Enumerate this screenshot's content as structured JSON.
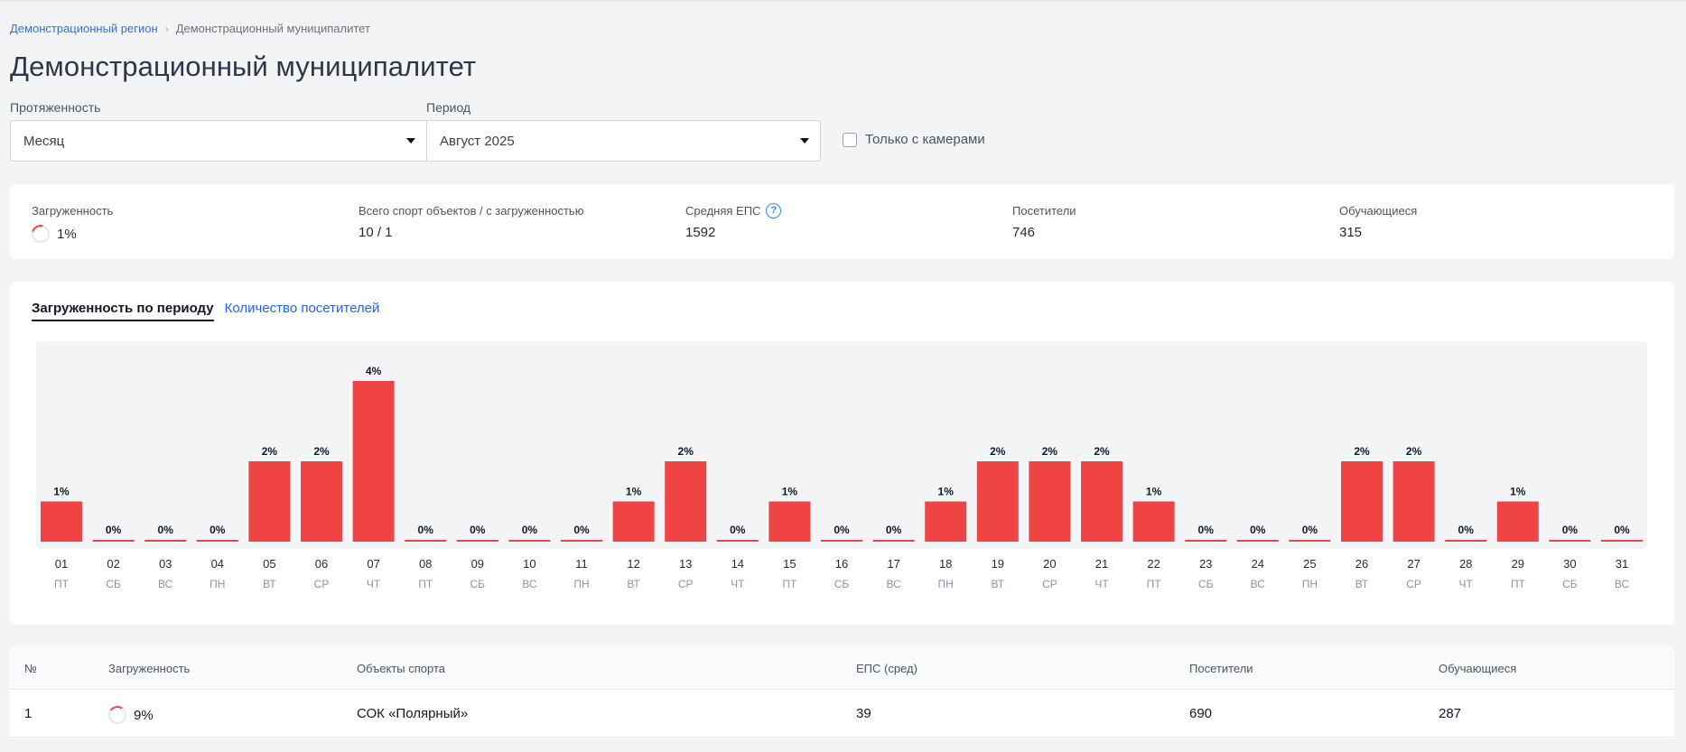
{
  "breadcrumb": {
    "region": "Демонстрационный регион",
    "current": "Демонстрационный муниципалитет"
  },
  "title": "Демонстрационный муниципалитет",
  "filters": {
    "extent_label": "Протяженность",
    "extent_value": "Месяц",
    "period_label": "Период",
    "period_value": "Август 2025",
    "cameras_label": "Только с камерами"
  },
  "stats": {
    "load_label": "Загруженность",
    "load_value": "1%",
    "objects_label": "Всего спорт объектов / с загруженностью",
    "objects_value": "10 / 1",
    "eps_label": "Средняя ЕПС",
    "eps_value": "1592",
    "visitors_label": "Посетители",
    "visitors_value": "746",
    "students_label": "Обучающиеся",
    "students_value": "315"
  },
  "tabs": {
    "load_by_period": "Загруженность по периоду",
    "visitors_count": "Количество посетителей"
  },
  "colors": {
    "bar": "#ef4444",
    "accent": "#2563eb"
  },
  "chart_data": {
    "type": "bar",
    "categories": [
      "01",
      "02",
      "03",
      "04",
      "05",
      "06",
      "07",
      "08",
      "09",
      "10",
      "11",
      "12",
      "13",
      "14",
      "15",
      "16",
      "17",
      "18",
      "19",
      "20",
      "21",
      "22",
      "23",
      "24",
      "25",
      "26",
      "27",
      "28",
      "29",
      "30",
      "31"
    ],
    "weekdays": [
      "ПТ",
      "СБ",
      "ВС",
      "ПН",
      "ВТ",
      "СР",
      "ЧТ",
      "ПТ",
      "СБ",
      "ВС",
      "ПН",
      "ВТ",
      "СР",
      "ЧТ",
      "ПТ",
      "СБ",
      "ВС",
      "ПН",
      "ВТ",
      "СР",
      "ЧТ",
      "ПТ",
      "СБ",
      "ВС",
      "ПН",
      "ВТ",
      "СР",
      "ЧТ",
      "ПТ",
      "СБ",
      "ВС"
    ],
    "values": [
      1,
      0,
      0,
      0,
      2,
      2,
      4,
      0,
      0,
      0,
      0,
      1,
      2,
      0,
      1,
      0,
      0,
      1,
      2,
      2,
      2,
      1,
      0,
      0,
      0,
      2,
      2,
      0,
      1,
      0,
      0
    ],
    "value_suffix": "%",
    "ylim": [
      0,
      4
    ],
    "grid": false,
    "legend": "none"
  },
  "table": {
    "headers": {
      "num": "№",
      "load": "Загруженность",
      "objects": "Объекты спорта",
      "eps": "ЕПС (сред)",
      "visitors": "Посетители",
      "students": "Обучающиеся"
    },
    "rows": [
      {
        "num": "1",
        "load": "9%",
        "object": "СОК «Полярный»",
        "eps": "39",
        "visitors": "690",
        "students": "287"
      }
    ]
  }
}
